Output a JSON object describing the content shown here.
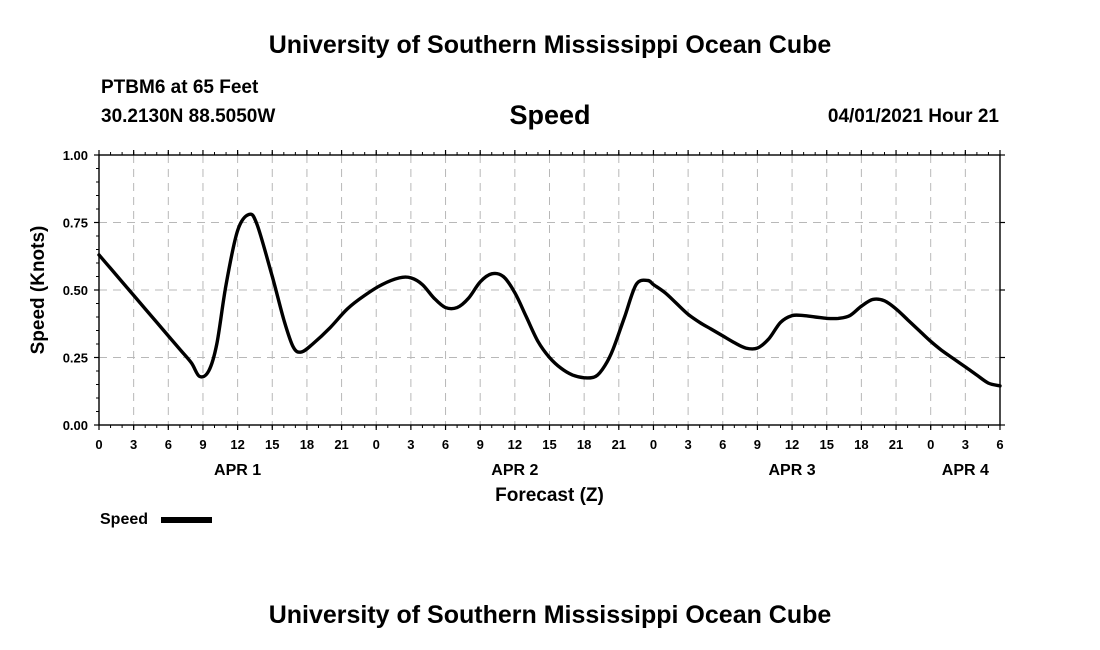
{
  "header": {
    "title_top": "University of Southern Mississippi Ocean Cube",
    "station": "PTBM6 at 65 Feet",
    "coords": "30.2130N  88.5050W",
    "timestamp": "04/01/2021 Hour 21",
    "title_bottom": "University of Southern Mississippi Ocean Cube"
  },
  "chart_data": {
    "type": "line",
    "title": "Speed",
    "xlabel": "Forecast (Z)",
    "ylabel": "Speed (Knots)",
    "ylim": [
      0,
      1
    ],
    "xlim": [
      0,
      78
    ],
    "grid": true,
    "y_ticks": [
      0,
      0.25,
      0.5,
      0.75,
      1.0
    ],
    "y_tick_labels": [
      "0.00",
      "0.25",
      "0.50",
      "0.75",
      "1.00"
    ],
    "x_ticks": [
      0,
      3,
      6,
      9,
      12,
      15,
      18,
      21,
      24,
      27,
      30,
      33,
      36,
      39,
      42,
      45,
      48,
      51,
      54,
      57,
      60,
      63,
      66,
      69,
      72,
      75,
      78
    ],
    "x_tick_labels": [
      "0",
      "3",
      "6",
      "9",
      "12",
      "15",
      "18",
      "21",
      "0",
      "3",
      "6",
      "9",
      "12",
      "15",
      "18",
      "21",
      "0",
      "3",
      "6",
      "9",
      "12",
      "15",
      "18",
      "21",
      "0",
      "3",
      "6"
    ],
    "date_labels": [
      {
        "hour": 12,
        "label": "APR 1"
      },
      {
        "hour": 36,
        "label": "APR 2"
      },
      {
        "hour": 60,
        "label": "APR 3"
      },
      {
        "hour": 75,
        "label": "APR 4"
      }
    ],
    "legend": {
      "label": "Speed",
      "position": "bottom-left"
    },
    "series": [
      {
        "name": "Speed",
        "color": "#000000",
        "x": [
          0,
          1,
          2,
          3,
          4,
          5,
          6,
          7,
          8,
          8.7,
          9.5,
          10.2,
          11,
          12,
          13,
          13.7,
          15,
          16,
          16.8,
          17.5,
          18.5,
          20,
          21.5,
          23,
          24.5,
          26,
          27,
          28,
          29,
          30,
          31,
          32,
          33,
          34,
          35,
          36,
          37,
          38,
          39,
          40,
          41,
          42,
          43,
          43.8,
          44.5,
          45.5,
          46.5,
          47.5,
          48,
          49,
          50,
          51,
          52,
          53,
          54,
          55,
          56,
          57,
          58,
          59,
          60,
          61,
          62,
          63,
          64,
          65,
          66,
          67,
          68,
          69,
          70,
          71,
          72,
          73,
          74,
          75,
          76,
          77,
          78
        ],
        "values": [
          0.63,
          0.58,
          0.53,
          0.48,
          0.43,
          0.38,
          0.33,
          0.28,
          0.23,
          0.18,
          0.2,
          0.3,
          0.52,
          0.72,
          0.78,
          0.74,
          0.55,
          0.39,
          0.29,
          0.27,
          0.3,
          0.36,
          0.43,
          0.48,
          0.52,
          0.545,
          0.545,
          0.52,
          0.47,
          0.435,
          0.435,
          0.47,
          0.53,
          0.56,
          0.55,
          0.49,
          0.4,
          0.31,
          0.25,
          0.21,
          0.185,
          0.175,
          0.18,
          0.22,
          0.28,
          0.4,
          0.52,
          0.535,
          0.52,
          0.49,
          0.45,
          0.41,
          0.38,
          0.355,
          0.33,
          0.305,
          0.285,
          0.285,
          0.32,
          0.38,
          0.405,
          0.405,
          0.4,
          0.395,
          0.395,
          0.405,
          0.44,
          0.465,
          0.46,
          0.43,
          0.39,
          0.35,
          0.31,
          0.275,
          0.245,
          0.215,
          0.185,
          0.155,
          0.145
        ]
      }
    ]
  }
}
